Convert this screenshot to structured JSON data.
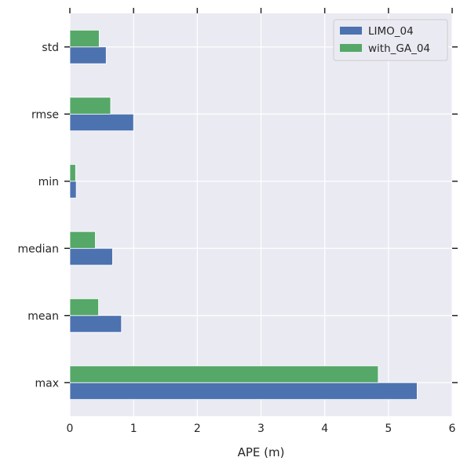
{
  "chart_data": {
    "type": "bar",
    "orientation": "horizontal",
    "categories": [
      "max",
      "mean",
      "median",
      "min",
      "rmse",
      "std"
    ],
    "series": [
      {
        "name": "LIMO_04",
        "color": "#4c72b0",
        "values": [
          5.45,
          0.81,
          0.67,
          0.1,
          1.0,
          0.57
        ]
      },
      {
        "name": "with_GA_04",
        "color": "#55a868",
        "values": [
          4.84,
          0.45,
          0.4,
          0.09,
          0.64,
          0.46
        ]
      }
    ],
    "xlabel": "APE (m)",
    "ylabel": "",
    "xlim": [
      0,
      6
    ],
    "xticks": [
      "0",
      "1",
      "2",
      "3",
      "4",
      "5",
      "6"
    ],
    "grid": true,
    "legend_position": "top-right",
    "background_color": "#eaeaf2"
  }
}
